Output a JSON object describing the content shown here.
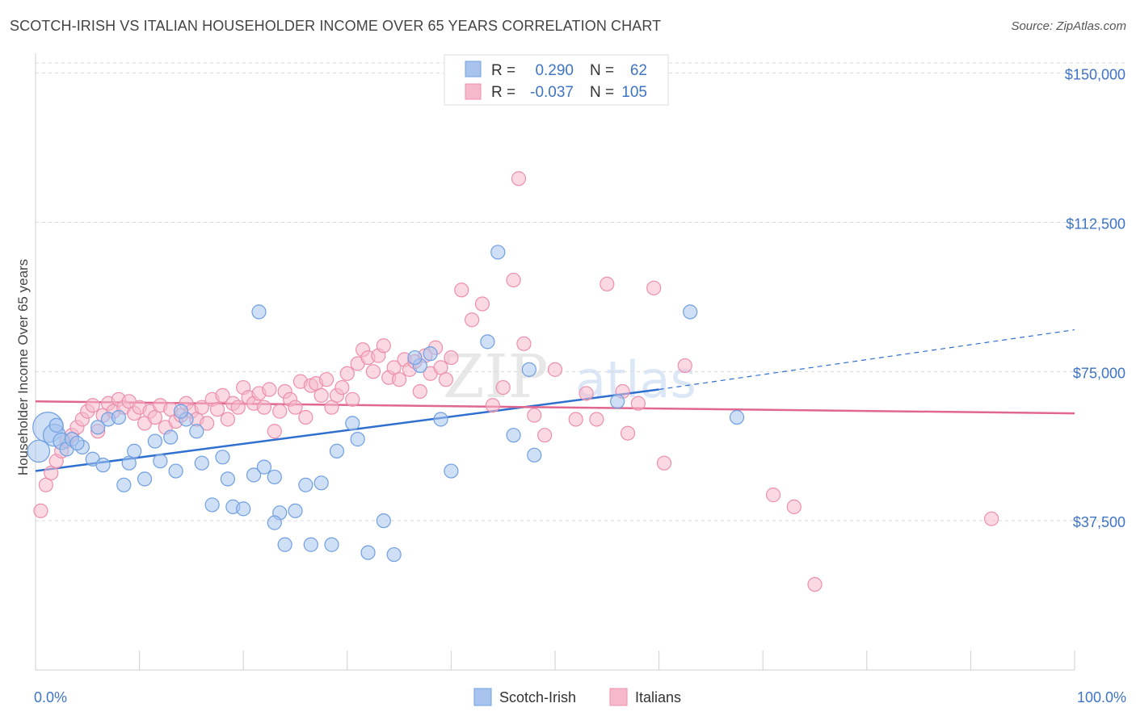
{
  "title": "SCOTCH-IRISH VS ITALIAN HOUSEHOLDER INCOME OVER 65 YEARS CORRELATION CHART",
  "source": "Source: ZipAtlas.com",
  "watermark": {
    "zip": "ZIP",
    "atlas": "atlas"
  },
  "colors": {
    "blue_fill": "#a8c4ee",
    "blue_stroke": "#6f9fe0",
    "blue_line": "#2f6fcf",
    "pink_fill": "#f6b9cc",
    "pink_stroke": "#ec8fab",
    "pink_line": "#e0678f",
    "axis_text": "#3f74c4",
    "grid": "#d9d9d9"
  },
  "legend": {
    "rows": [
      {
        "r_label": "R =",
        "r_value": "0.290",
        "n_label": "N =",
        "n_value": "62"
      },
      {
        "r_label": "R =",
        "r_value": "-0.037",
        "n_label": "N =",
        "n_value": "105"
      }
    ]
  },
  "chart_data": {
    "type": "scatter",
    "title": "SCOTCH-IRISH VS ITALIAN HOUSEHOLDER INCOME OVER 65 YEARS CORRELATION CHART",
    "ylabel": "Householder Income Over 65 years",
    "xlabel": "",
    "xlim": [
      0,
      100
    ],
    "ylim": [
      0,
      155000
    ],
    "x_tick_labels": [
      "0.0%",
      "100.0%"
    ],
    "y_ticks": [
      37500,
      75000,
      112500,
      150000
    ],
    "y_tick_labels": [
      "$37,500",
      "$75,000",
      "$112,500",
      "$150,000"
    ],
    "grid": "horizontal dashed",
    "legend_position": "top-center",
    "series": [
      {
        "name": "Scotch-Irish",
        "r": 0.29,
        "n": 62,
        "trend": {
          "x": [
            0,
            60
          ],
          "y": [
            50000,
            70500
          ],
          "dashed_to": [
            100,
            85500
          ]
        },
        "points": [
          [
            1.2,
            61000,
            2.2
          ],
          [
            1.8,
            59000,
            1.6
          ],
          [
            2.5,
            57500,
            1.2
          ],
          [
            3.0,
            55500,
            1.0
          ],
          [
            4.5,
            56000,
            1.0
          ],
          [
            3.5,
            58000,
            1.0
          ],
          [
            5.5,
            53000,
            1.0
          ],
          [
            6.5,
            51500,
            1.0
          ],
          [
            6.0,
            61000,
            1.0
          ],
          [
            7.0,
            63000,
            1.0
          ],
          [
            8.5,
            46500,
            1.0
          ],
          [
            9.0,
            52000,
            1.0
          ],
          [
            9.5,
            55000,
            1.0
          ],
          [
            10.5,
            48000,
            1.0
          ],
          [
            11.5,
            57500,
            1.0
          ],
          [
            12.0,
            52500,
            1.0
          ],
          [
            13.0,
            58500,
            1.0
          ],
          [
            13.5,
            50000,
            1.0
          ],
          [
            14.5,
            63000,
            1.0
          ],
          [
            15.5,
            60000,
            1.0
          ],
          [
            16.0,
            52000,
            1.0
          ],
          [
            17.0,
            41500,
            1.0
          ],
          [
            18.0,
            53500,
            1.0
          ],
          [
            18.5,
            48000,
            1.0
          ],
          [
            19.0,
            41000,
            1.0
          ],
          [
            20.0,
            40500,
            1.0
          ],
          [
            21.0,
            49000,
            1.0
          ],
          [
            22.0,
            51000,
            1.0
          ],
          [
            23.0,
            48500,
            1.0
          ],
          [
            23.5,
            39500,
            1.0
          ],
          [
            24.0,
            31500,
            1.0
          ],
          [
            25.0,
            40000,
            1.0
          ],
          [
            26.0,
            46500,
            1.0
          ],
          [
            27.5,
            47000,
            1.0
          ],
          [
            26.5,
            31500,
            1.0
          ],
          [
            28.5,
            31500,
            1.0
          ],
          [
            29.0,
            55000,
            1.0
          ],
          [
            30.5,
            62000,
            1.0
          ],
          [
            31.0,
            58000,
            1.0
          ],
          [
            32.0,
            29500,
            1.0
          ],
          [
            33.5,
            37500,
            1.0
          ],
          [
            34.5,
            29000,
            1.0
          ],
          [
            37.0,
            76500,
            1.0
          ],
          [
            38.0,
            79500,
            1.0
          ],
          [
            39.0,
            63000,
            1.0
          ],
          [
            40.0,
            50000,
            1.0
          ],
          [
            43.5,
            82500,
            1.0
          ],
          [
            44.5,
            105000,
            1.0
          ],
          [
            46.0,
            59000,
            1.0
          ],
          [
            47.5,
            75500,
            1.0
          ],
          [
            48.0,
            54000,
            1.0
          ],
          [
            21.5,
            90000,
            1.0
          ],
          [
            56.0,
            67500,
            1.0
          ],
          [
            63.0,
            90000,
            1.0
          ],
          [
            67.5,
            63500,
            1.0
          ],
          [
            0.3,
            55000,
            1.6
          ],
          [
            2.0,
            61500,
            1.0
          ],
          [
            4.0,
            57000,
            1.0
          ],
          [
            8.0,
            63500,
            1.0
          ],
          [
            14.0,
            65000,
            1.0
          ],
          [
            36.5,
            78500,
            1.0
          ],
          [
            23.0,
            37000,
            1.0
          ]
        ]
      },
      {
        "name": "Italians",
        "r": -0.037,
        "n": 105,
        "trend": {
          "x": [
            0,
            100
          ],
          "y": [
            67500,
            64500
          ]
        },
        "points": [
          [
            0.5,
            40000,
            1.0
          ],
          [
            1.0,
            46500,
            1.0
          ],
          [
            1.5,
            49500,
            1.0
          ],
          [
            2.0,
            52500,
            1.0
          ],
          [
            2.5,
            55000,
            1.0
          ],
          [
            3.0,
            57500,
            1.0
          ],
          [
            3.5,
            59000,
            1.0
          ],
          [
            4.0,
            61000,
            1.0
          ],
          [
            4.5,
            63000,
            1.0
          ],
          [
            5.0,
            65000,
            1.0
          ],
          [
            5.5,
            66500,
            1.0
          ],
          [
            6.0,
            60000,
            1.0
          ],
          [
            6.5,
            64000,
            1.0
          ],
          [
            7.0,
            67000,
            1.0
          ],
          [
            7.5,
            65000,
            1.0
          ],
          [
            8.0,
            68000,
            1.0
          ],
          [
            8.5,
            66000,
            1.0
          ],
          [
            9.0,
            67500,
            1.0
          ],
          [
            9.5,
            64500,
            1.0
          ],
          [
            10.0,
            66000,
            1.0
          ],
          [
            10.5,
            62000,
            1.0
          ],
          [
            11.0,
            65000,
            1.0
          ],
          [
            11.5,
            63500,
            1.0
          ],
          [
            12.0,
            66500,
            1.0
          ],
          [
            12.5,
            61000,
            1.0
          ],
          [
            13.0,
            65500,
            1.0
          ],
          [
            13.5,
            62500,
            1.0
          ],
          [
            14.0,
            64000,
            1.0
          ],
          [
            14.5,
            67000,
            1.0
          ],
          [
            15.0,
            65000,
            1.0
          ],
          [
            15.5,
            63000,
            1.0
          ],
          [
            16.0,
            66000,
            1.0
          ],
          [
            16.5,
            62000,
            1.0
          ],
          [
            17.0,
            68000,
            1.0
          ],
          [
            17.5,
            65500,
            1.0
          ],
          [
            18.0,
            69000,
            1.0
          ],
          [
            18.5,
            63000,
            1.0
          ],
          [
            19.0,
            67000,
            1.0
          ],
          [
            19.5,
            66000,
            1.0
          ],
          [
            20.0,
            71000,
            1.0
          ],
          [
            20.5,
            68500,
            1.0
          ],
          [
            21.0,
            67000,
            1.0
          ],
          [
            21.5,
            69500,
            1.0
          ],
          [
            22.0,
            66000,
            1.0
          ],
          [
            22.5,
            70500,
            1.0
          ],
          [
            23.0,
            60000,
            1.0
          ],
          [
            23.5,
            65000,
            1.0
          ],
          [
            24.0,
            70000,
            1.0
          ],
          [
            24.5,
            68000,
            1.0
          ],
          [
            25.0,
            66000,
            1.0
          ],
          [
            25.5,
            72500,
            1.0
          ],
          [
            26.0,
            63500,
            1.0
          ],
          [
            26.5,
            71500,
            1.0
          ],
          [
            27.0,
            72000,
            1.0
          ],
          [
            27.5,
            69000,
            1.0
          ],
          [
            28.0,
            73000,
            1.0
          ],
          [
            28.5,
            66000,
            1.0
          ],
          [
            29.0,
            69000,
            1.0
          ],
          [
            29.5,
            71000,
            1.0
          ],
          [
            30.0,
            74500,
            1.0
          ],
          [
            30.5,
            68000,
            1.0
          ],
          [
            31.0,
            77000,
            1.0
          ],
          [
            31.5,
            80500,
            1.0
          ],
          [
            32.0,
            78500,
            1.0
          ],
          [
            32.5,
            75000,
            1.0
          ],
          [
            33.0,
            79000,
            1.0
          ],
          [
            33.5,
            81500,
            1.0
          ],
          [
            34.0,
            73500,
            1.0
          ],
          [
            34.5,
            76000,
            1.0
          ],
          [
            35.0,
            73000,
            1.0
          ],
          [
            35.5,
            78000,
            1.0
          ],
          [
            36.0,
            75500,
            1.0
          ],
          [
            36.5,
            77500,
            1.0
          ],
          [
            37.0,
            70000,
            1.0
          ],
          [
            37.5,
            79000,
            1.0
          ],
          [
            38.0,
            74500,
            1.0
          ],
          [
            38.5,
            81000,
            1.0
          ],
          [
            39.0,
            76000,
            1.0
          ],
          [
            39.5,
            73000,
            1.0
          ],
          [
            40.0,
            78500,
            1.0
          ],
          [
            41.0,
            95500,
            1.0
          ],
          [
            42.0,
            88000,
            1.0
          ],
          [
            43.0,
            92000,
            1.0
          ],
          [
            44.0,
            66500,
            1.0
          ],
          [
            45.0,
            71000,
            1.0
          ],
          [
            46.0,
            98000,
            1.0
          ],
          [
            47.0,
            82000,
            1.0
          ],
          [
            48.0,
            64000,
            1.0
          ],
          [
            49.0,
            59000,
            1.0
          ],
          [
            50.0,
            75500,
            1.0
          ],
          [
            52.0,
            63000,
            1.0
          ],
          [
            53.0,
            69500,
            1.0
          ],
          [
            54.0,
            63000,
            1.0
          ],
          [
            55.0,
            97000,
            1.0
          ],
          [
            56.5,
            70000,
            1.0
          ],
          [
            57.0,
            59500,
            1.0
          ],
          [
            58.0,
            67000,
            1.0
          ],
          [
            59.5,
            96000,
            1.0
          ],
          [
            60.5,
            52000,
            1.0
          ],
          [
            62.5,
            76500,
            1.0
          ],
          [
            46.5,
            123500,
            1.0
          ],
          [
            71.0,
            44000,
            1.0
          ],
          [
            73.0,
            41000,
            1.0
          ],
          [
            92.0,
            38000,
            1.0
          ],
          [
            75.0,
            21500,
            1.0
          ]
        ]
      }
    ]
  },
  "bottom_legend": {
    "items": [
      "Scotch-Irish",
      "Italians"
    ]
  }
}
